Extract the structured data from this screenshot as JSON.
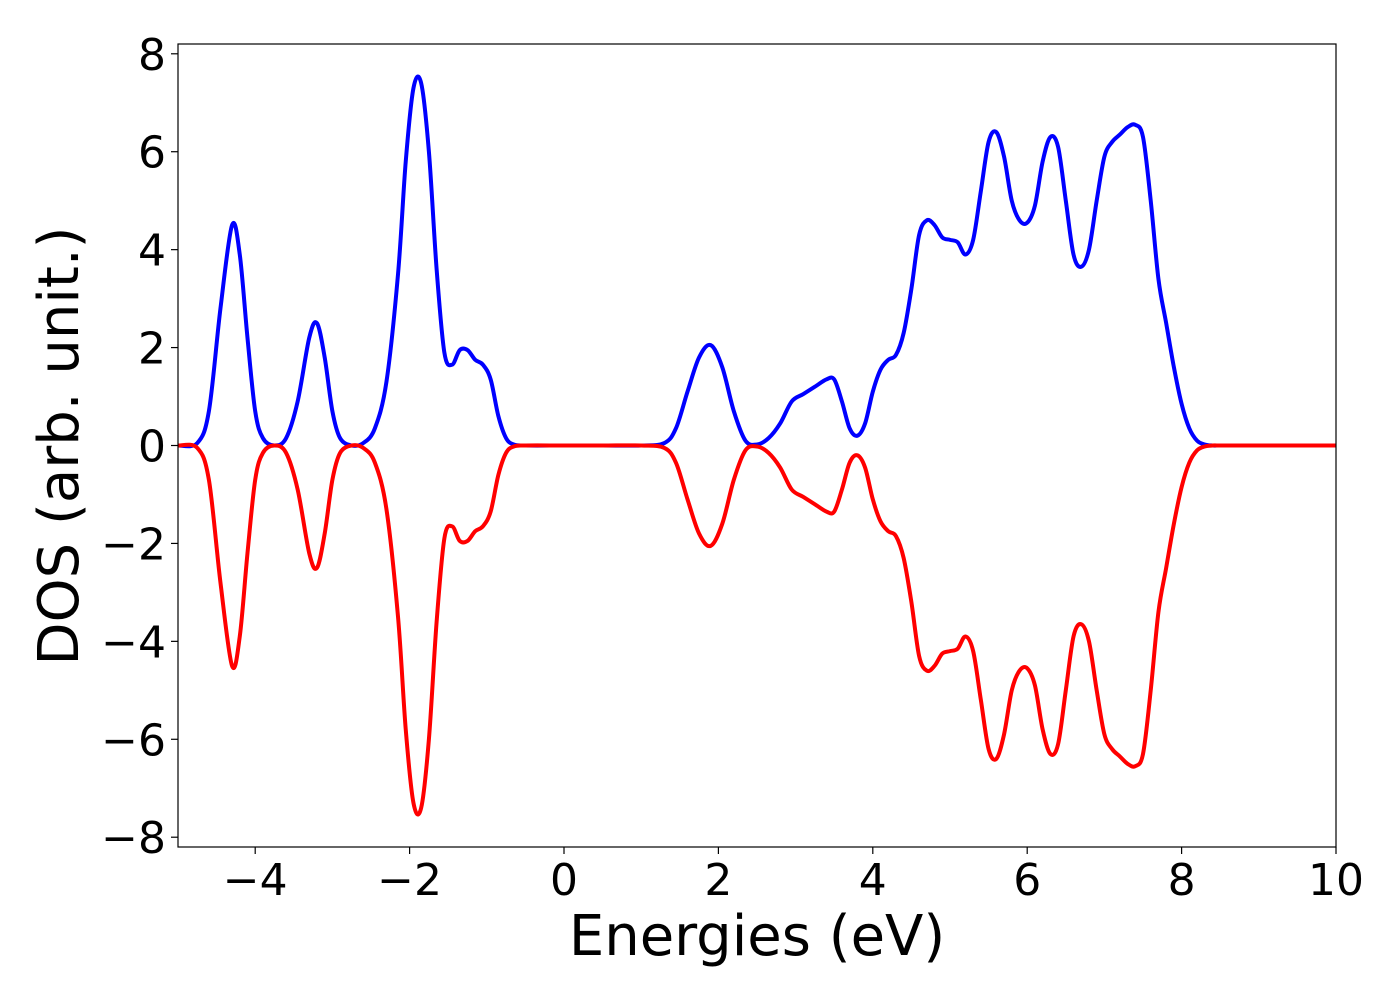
{
  "chart_data": {
    "type": "line",
    "title": "",
    "xlabel": "Energies (eV)",
    "ylabel": "DOS (arb. unit.)",
    "xlim": [
      -5,
      10
    ],
    "ylim": [
      -8.2,
      8.2
    ],
    "xticks": [
      -4,
      -2,
      0,
      2,
      4,
      6,
      8,
      10
    ],
    "xtick_labels": [
      "−4",
      "−2",
      "0",
      "2",
      "4",
      "6",
      "8",
      "10"
    ],
    "yticks": [
      -8,
      -6,
      -4,
      -2,
      0,
      2,
      4,
      6,
      8
    ],
    "ytick_labels": [
      "−8",
      "−6",
      "−4",
      "−2",
      "0",
      "2",
      "4",
      "6",
      "8"
    ],
    "grid": false,
    "legend": "none",
    "series": [
      {
        "color": "#0000ff",
        "x": [
          -5.0,
          -4.75,
          -4.6,
          -4.45,
          -4.3,
          -4.2,
          -4.1,
          -4.0,
          -3.9,
          -3.75,
          -3.6,
          -3.45,
          -3.3,
          -3.2,
          -3.1,
          -3.0,
          -2.9,
          -2.75,
          -2.6,
          -2.45,
          -2.3,
          -2.15,
          -2.05,
          -1.95,
          -1.85,
          -1.75,
          -1.65,
          -1.55,
          -1.45,
          -1.35,
          -1.25,
          -1.15,
          -1.05,
          -0.95,
          -0.85,
          -0.75,
          -0.65,
          -0.5,
          0.0,
          0.5,
          1.0,
          1.3,
          1.45,
          1.6,
          1.75,
          1.9,
          2.05,
          2.2,
          2.35,
          2.5,
          2.65,
          2.8,
          2.95,
          3.1,
          3.25,
          3.4,
          3.5,
          3.6,
          3.7,
          3.8,
          3.9,
          4.0,
          4.1,
          4.2,
          4.3,
          4.4,
          4.5,
          4.6,
          4.7,
          4.8,
          4.9,
          5.0,
          5.1,
          5.2,
          5.3,
          5.4,
          5.5,
          5.6,
          5.7,
          5.8,
          5.9,
          6.0,
          6.1,
          6.2,
          6.3,
          6.4,
          6.5,
          6.6,
          6.7,
          6.8,
          6.9,
          7.0,
          7.1,
          7.2,
          7.3,
          7.4,
          7.5,
          7.6,
          7.7,
          7.8,
          7.9,
          8.0,
          8.1,
          8.2,
          8.3,
          8.4,
          8.5,
          8.7,
          9.0,
          9.5,
          10.0
        ],
        "y": [
          0.0,
          0.05,
          0.7,
          2.8,
          4.5,
          3.9,
          2.2,
          0.7,
          0.15,
          0.0,
          0.15,
          0.9,
          2.2,
          2.5,
          1.8,
          0.7,
          0.15,
          0.0,
          0.05,
          0.35,
          1.3,
          3.5,
          5.8,
          7.3,
          7.4,
          6.0,
          3.6,
          1.9,
          1.65,
          1.95,
          1.95,
          1.75,
          1.65,
          1.35,
          0.6,
          0.15,
          0.02,
          0.0,
          0.0,
          0.0,
          0.0,
          0.05,
          0.35,
          1.1,
          1.8,
          2.05,
          1.6,
          0.7,
          0.1,
          0.02,
          0.15,
          0.45,
          0.9,
          1.05,
          1.2,
          1.35,
          1.35,
          0.9,
          0.35,
          0.2,
          0.45,
          1.1,
          1.55,
          1.75,
          1.85,
          2.3,
          3.2,
          4.3,
          4.6,
          4.5,
          4.25,
          4.2,
          4.15,
          3.9,
          4.2,
          5.2,
          6.2,
          6.4,
          5.9,
          5.0,
          4.6,
          4.55,
          4.9,
          5.8,
          6.3,
          6.1,
          5.0,
          3.9,
          3.65,
          4.0,
          5.0,
          5.9,
          6.2,
          6.35,
          6.5,
          6.55,
          6.3,
          5.0,
          3.4,
          2.5,
          1.6,
          0.85,
          0.35,
          0.1,
          0.02,
          0.0,
          0.0,
          0.0,
          0.0,
          0.0,
          0.0
        ]
      },
      {
        "color": "#ff0000",
        "x": [
          -5.0,
          -4.75,
          -4.6,
          -4.45,
          -4.3,
          -4.2,
          -4.1,
          -4.0,
          -3.9,
          -3.75,
          -3.6,
          -3.45,
          -3.3,
          -3.2,
          -3.1,
          -3.0,
          -2.9,
          -2.75,
          -2.6,
          -2.45,
          -2.3,
          -2.15,
          -2.05,
          -1.95,
          -1.85,
          -1.75,
          -1.65,
          -1.55,
          -1.45,
          -1.35,
          -1.25,
          -1.15,
          -1.05,
          -0.95,
          -0.85,
          -0.75,
          -0.65,
          -0.5,
          0.0,
          0.5,
          1.0,
          1.3,
          1.45,
          1.6,
          1.75,
          1.9,
          2.05,
          2.2,
          2.35,
          2.5,
          2.65,
          2.8,
          2.95,
          3.1,
          3.25,
          3.4,
          3.5,
          3.6,
          3.7,
          3.8,
          3.9,
          4.0,
          4.1,
          4.2,
          4.3,
          4.4,
          4.5,
          4.6,
          4.7,
          4.8,
          4.9,
          5.0,
          5.1,
          5.2,
          5.3,
          5.4,
          5.5,
          5.6,
          5.7,
          5.8,
          5.9,
          6.0,
          6.1,
          6.2,
          6.3,
          6.4,
          6.5,
          6.6,
          6.7,
          6.8,
          6.9,
          7.0,
          7.1,
          7.2,
          7.3,
          7.4,
          7.5,
          7.6,
          7.7,
          7.8,
          7.9,
          8.0,
          8.1,
          8.2,
          8.3,
          8.4,
          8.5,
          8.7,
          9.0,
          9.5,
          10.0
        ],
        "y": [
          0.0,
          -0.05,
          -0.7,
          -2.8,
          -4.5,
          -3.9,
          -2.2,
          -0.7,
          -0.15,
          0.0,
          -0.15,
          -0.9,
          -2.2,
          -2.5,
          -1.8,
          -0.7,
          -0.15,
          0.0,
          -0.05,
          -0.35,
          -1.3,
          -3.5,
          -5.8,
          -7.3,
          -7.4,
          -6.0,
          -3.6,
          -1.9,
          -1.65,
          -1.95,
          -1.95,
          -1.75,
          -1.65,
          -1.35,
          -0.6,
          -0.15,
          -0.02,
          0.0,
          0.0,
          0.0,
          0.0,
          -0.05,
          -0.35,
          -1.1,
          -1.8,
          -2.05,
          -1.6,
          -0.7,
          -0.1,
          -0.02,
          -0.15,
          -0.45,
          -0.9,
          -1.05,
          -1.2,
          -1.35,
          -1.35,
          -0.9,
          -0.35,
          -0.2,
          -0.45,
          -1.1,
          -1.55,
          -1.75,
          -1.85,
          -2.3,
          -3.2,
          -4.3,
          -4.6,
          -4.5,
          -4.25,
          -4.2,
          -4.15,
          -3.9,
          -4.2,
          -5.2,
          -6.2,
          -6.4,
          -5.9,
          -5.0,
          -4.6,
          -4.55,
          -4.9,
          -5.8,
          -6.3,
          -6.1,
          -5.0,
          -3.9,
          -3.65,
          -4.0,
          -5.0,
          -5.9,
          -6.2,
          -6.35,
          -6.5,
          -6.55,
          -6.3,
          -5.0,
          -3.4,
          -2.5,
          -1.6,
          -0.85,
          -0.35,
          -0.1,
          -0.02,
          0.0,
          0.0,
          0.0,
          0.0,
          0.0,
          0.0
        ]
      }
    ]
  }
}
